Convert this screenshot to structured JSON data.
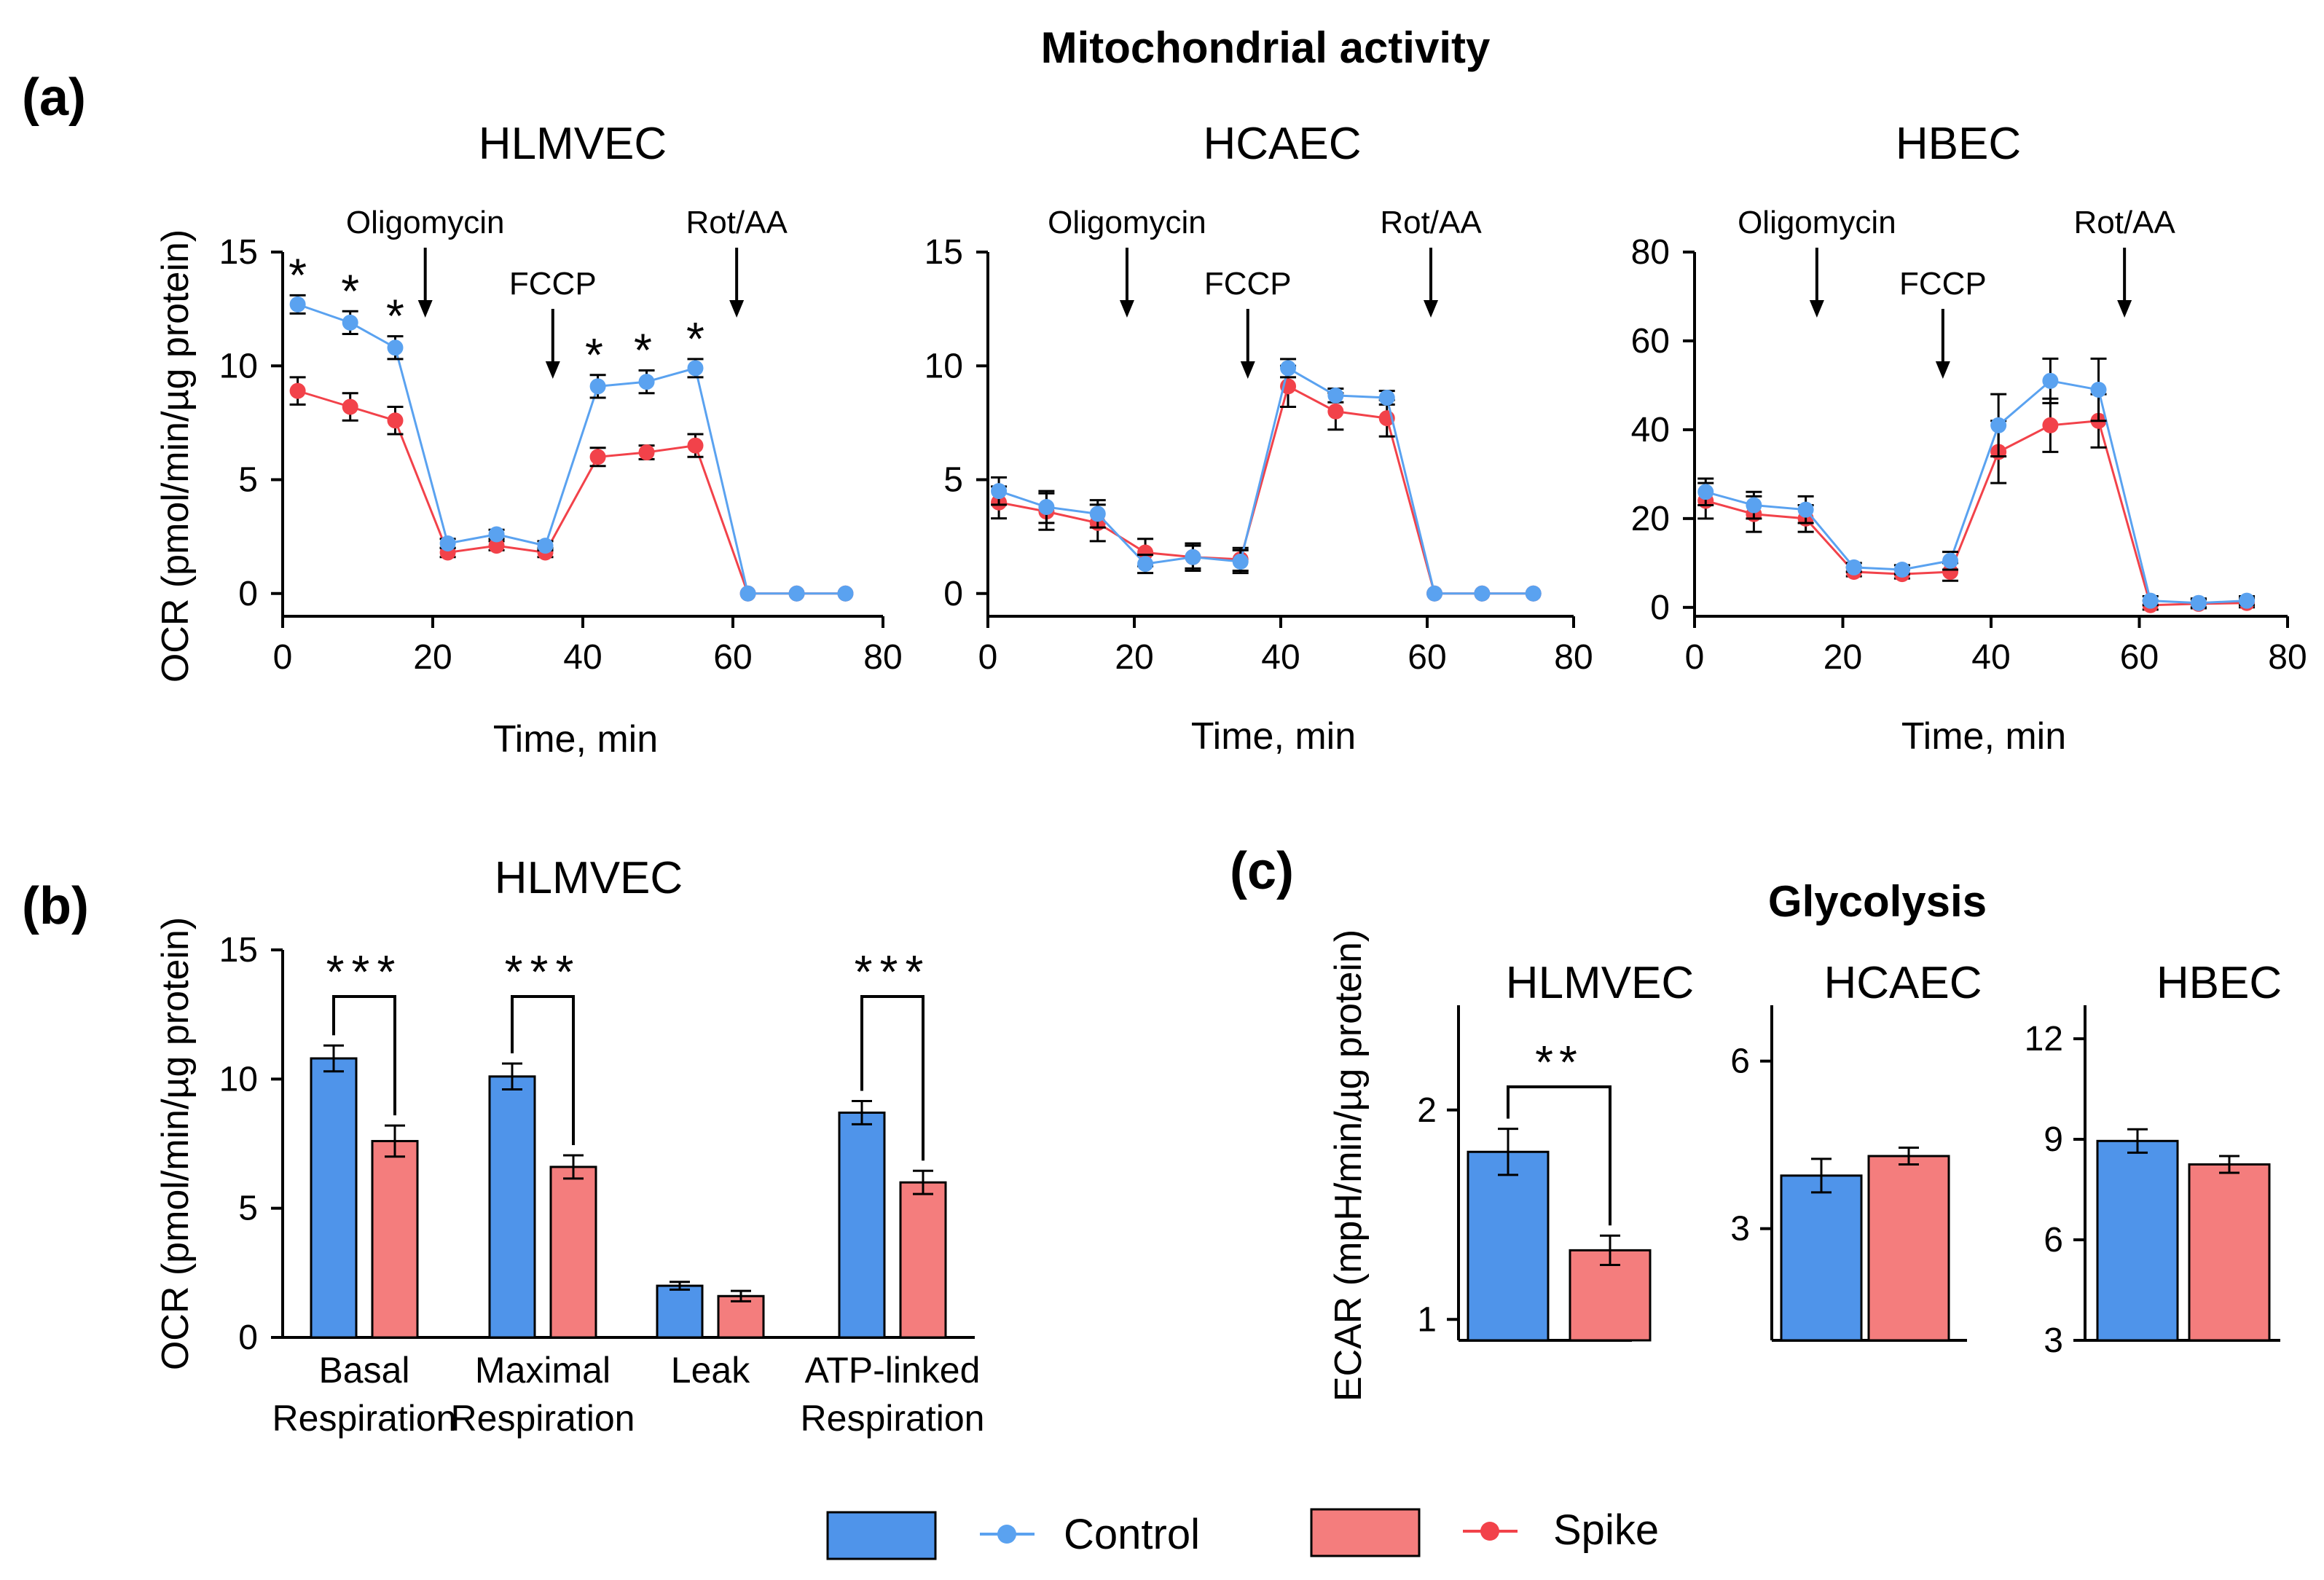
{
  "figure": {
    "main_title": "Mitochondrial activity",
    "panel_a_label": "(a)",
    "panel_b_label": "(b)",
    "panel_c_label": "(c)",
    "glycolysis_title": "Glycolysis"
  },
  "colors": {
    "control": "#5aa2f0",
    "control_bar": "#4f94ea",
    "spike": "#f2424a",
    "spike_bar": "#f47d7d",
    "axis": "#000000"
  },
  "legend": {
    "control": "Control",
    "spike": "Spike"
  },
  "chart_data": [
    {
      "id": "a1",
      "type": "line",
      "title": "HLMVEC",
      "xlabel": "Time, min",
      "ylabel": "OCR (pmol/min/µg protein)",
      "xlim": [
        0,
        80
      ],
      "ylim": [
        -1,
        15
      ],
      "xticks": [
        0,
        20,
        40,
        60,
        80
      ],
      "yticks": [
        0,
        5,
        10,
        15
      ],
      "injections": [
        {
          "label": "Oligomycin",
          "x": 19
        },
        {
          "label": "FCCP",
          "x": 36
        },
        {
          "label": "Rot/AA",
          "x": 60.5
        }
      ],
      "significance": [
        {
          "x": 2,
          "label": "*"
        },
        {
          "x": 9,
          "label": "*"
        },
        {
          "x": 15,
          "label": "*"
        },
        {
          "x": 41.5,
          "label": "*"
        },
        {
          "x": 48,
          "label": "*"
        },
        {
          "x": 55,
          "label": "*"
        }
      ],
      "x": [
        2,
        9,
        15,
        22,
        28.5,
        35,
        42,
        48.5,
        55,
        62,
        68.5,
        75
      ],
      "series": [
        {
          "name": "Control",
          "values": [
            12.7,
            11.9,
            10.8,
            2.2,
            2.6,
            2.1,
            9.1,
            9.3,
            9.9,
            0,
            0,
            0
          ],
          "errors": [
            0.4,
            0.5,
            0.5,
            0.2,
            0.2,
            0.2,
            0.5,
            0.5,
            0.4,
            0,
            0,
            0
          ]
        },
        {
          "name": "Spike",
          "values": [
            8.9,
            8.2,
            7.6,
            1.8,
            2.1,
            1.8,
            6.0,
            6.2,
            6.5,
            0,
            0,
            0
          ],
          "errors": [
            0.6,
            0.6,
            0.6,
            0.2,
            0.2,
            0.2,
            0.4,
            0.3,
            0.5,
            0,
            0,
            0
          ]
        }
      ]
    },
    {
      "id": "a2",
      "type": "line",
      "title": "HCAEC",
      "xlabel": "Time, min",
      "ylabel": "",
      "xlim": [
        0,
        80
      ],
      "ylim": [
        -1,
        15
      ],
      "xticks": [
        0,
        20,
        40,
        60,
        80
      ],
      "yticks": [
        0,
        5,
        10,
        15
      ],
      "injections": [
        {
          "label": "Oligomycin",
          "x": 19
        },
        {
          "label": "FCCP",
          "x": 35.5
        },
        {
          "label": "Rot/AA",
          "x": 60.5
        }
      ],
      "significance": [],
      "x": [
        1.5,
        8,
        15,
        21.5,
        28,
        34.5,
        41,
        47.5,
        54.5,
        61,
        67.5,
        74.5
      ],
      "series": [
        {
          "name": "Control",
          "values": [
            4.5,
            3.8,
            3.5,
            1.3,
            1.6,
            1.4,
            9.9,
            8.7,
            8.6,
            0,
            0,
            0
          ],
          "errors": [
            0.6,
            0.7,
            0.6,
            0.4,
            0.5,
            0.5,
            0.4,
            0.3,
            0.3,
            0,
            0,
            0
          ]
        },
        {
          "name": "Spike",
          "values": [
            4.0,
            3.6,
            3.1,
            1.8,
            1.6,
            1.5,
            9.1,
            8.0,
            7.7,
            0,
            0,
            0
          ],
          "errors": [
            0.7,
            0.8,
            0.8,
            0.6,
            0.6,
            0.5,
            0.9,
            0.8,
            0.8,
            0,
            0,
            0
          ]
        }
      ]
    },
    {
      "id": "a3",
      "type": "line",
      "title": "HBEC",
      "xlabel": "Time, min",
      "ylabel": "",
      "xlim": [
        0,
        80
      ],
      "ylim": [
        -2,
        80
      ],
      "xticks": [
        0,
        20,
        40,
        60,
        80
      ],
      "yticks": [
        0,
        20,
        40,
        60,
        80
      ],
      "injections": [
        {
          "label": "Oligomycin",
          "x": 16.5
        },
        {
          "label": "FCCP",
          "x": 33.5
        },
        {
          "label": "Rot/AA",
          "x": 58
        }
      ],
      "significance": [],
      "x": [
        1.5,
        8,
        15,
        21.5,
        28,
        34.5,
        41,
        48,
        54.5,
        61.5,
        68,
        74.5
      ],
      "series": [
        {
          "name": "Control",
          "values": [
            26,
            23,
            22,
            9,
            8.5,
            10.5,
            41,
            51,
            49,
            1.5,
            1,
            1.5
          ],
          "errors": [
            3,
            3,
            3,
            1,
            1,
            2,
            7,
            5,
            7,
            1,
            1,
            1
          ]
        },
        {
          "name": "Spike",
          "values": [
            24,
            21,
            20,
            8,
            7.5,
            8,
            35,
            41,
            42,
            0.5,
            0.8,
            1
          ],
          "errors": [
            4,
            4,
            3,
            1,
            1,
            2,
            7,
            6,
            6,
            1,
            1,
            1
          ]
        }
      ]
    },
    {
      "id": "b",
      "type": "bar",
      "title": "HLMVEC",
      "xlabel": "",
      "ylabel": "OCR (pmol/min/µg protein)",
      "ylim": [
        0,
        15
      ],
      "yticks": [
        0,
        5,
        10,
        15
      ],
      "categories": [
        [
          "Basal",
          "Respiration"
        ],
        [
          "Maximal",
          "Respiration"
        ],
        [
          "Leak",
          ""
        ],
        [
          "ATP-linked",
          "Respiration"
        ]
      ],
      "series": [
        {
          "name": "Control",
          "values": [
            10.8,
            10.1,
            2.0,
            8.7
          ],
          "errors": [
            0.5,
            0.5,
            0.15,
            0.45
          ]
        },
        {
          "name": "Spike",
          "values": [
            7.6,
            6.6,
            1.6,
            6.0
          ],
          "errors": [
            0.6,
            0.45,
            0.2,
            0.45
          ]
        }
      ],
      "significance": [
        {
          "category": 0,
          "label": "***"
        },
        {
          "category": 1,
          "label": "***"
        },
        {
          "category": 3,
          "label": "***"
        }
      ]
    },
    {
      "id": "c1",
      "type": "bar",
      "title": "HLMVEC",
      "xlabel": "",
      "ylabel": "ECAR (mpH/min/µg protein)",
      "ylim": [
        0.9,
        2.5
      ],
      "yticks": [
        1,
        2
      ],
      "categories": [
        "Control",
        "Spike"
      ],
      "values": [
        1.8,
        1.33
      ],
      "errors": [
        0.11,
        0.07
      ],
      "significance": [
        {
          "label": "**"
        }
      ]
    },
    {
      "id": "c2",
      "type": "bar",
      "title": "HCAEC",
      "xlabel": "",
      "ylabel": "",
      "ylim": [
        1.0,
        7.0
      ],
      "yticks": [
        3,
        6
      ],
      "categories": [
        "Control",
        "Spike"
      ],
      "values": [
        3.95,
        4.3
      ],
      "errors": [
        0.3,
        0.15
      ],
      "significance": []
    },
    {
      "id": "c3",
      "type": "bar",
      "title": "HBEC",
      "xlabel": "",
      "ylabel": "",
      "ylim": [
        3,
        13
      ],
      "yticks": [
        3,
        6,
        9,
        12
      ],
      "categories": [
        "Control",
        "Spike"
      ],
      "values": [
        8.95,
        8.25
      ],
      "errors": [
        0.35,
        0.25
      ],
      "significance": []
    }
  ]
}
